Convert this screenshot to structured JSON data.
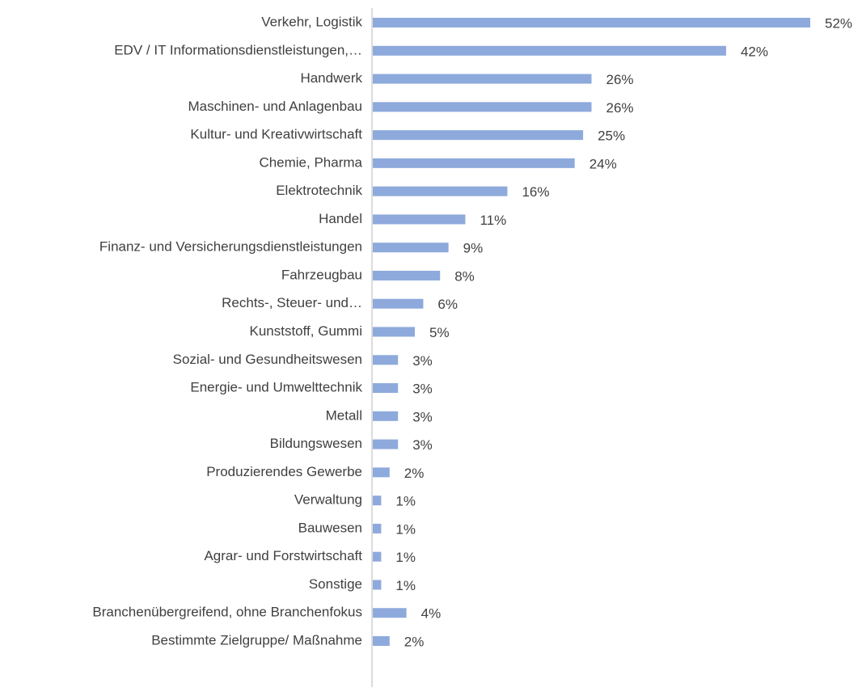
{
  "chart_data": {
    "type": "bar",
    "orientation": "horizontal",
    "color": "#8eaadc",
    "categories": [
      "Verkehr, Logistik",
      "EDV / IT Informationsdienstleistungen,…",
      "Handwerk",
      "Maschinen- und Anlagenbau",
      "Kultur- und Kreativwirtschaft",
      "Chemie, Pharma",
      "Elektrotechnik",
      "Handel",
      "Finanz- und Versicherungsdienstleistungen",
      "Fahrzeugbau",
      "Rechts-, Steuer- und…",
      "Kunststoff, Gummi",
      "Sozial- und Gesundheitswesen",
      "Energie- und Umwelttechnik",
      "Metall",
      "Bildungswesen",
      "Produzierendes Gewerbe",
      "Verwaltung",
      "Bauwesen",
      "Agrar- und Forstwirtschaft",
      "Sonstige",
      "Branchenübergreifend, ohne Branchenfokus",
      "Bestimmte Zielgruppe/ Maßnahme"
    ],
    "values": [
      52,
      42,
      26,
      26,
      25,
      24,
      16,
      11,
      9,
      8,
      6,
      5,
      3,
      3,
      3,
      3,
      2,
      1,
      1,
      1,
      1,
      4,
      2
    ],
    "value_labels": [
      "52%",
      "42%",
      "26%",
      "26%",
      "25%",
      "24%",
      "16%",
      "11%",
      "9%",
      "8%",
      "6%",
      "5%",
      "3%",
      "3%",
      "3%",
      "3%",
      "2%",
      "1%",
      "1%",
      "1%",
      "1%",
      "4%",
      "2%"
    ]
  }
}
